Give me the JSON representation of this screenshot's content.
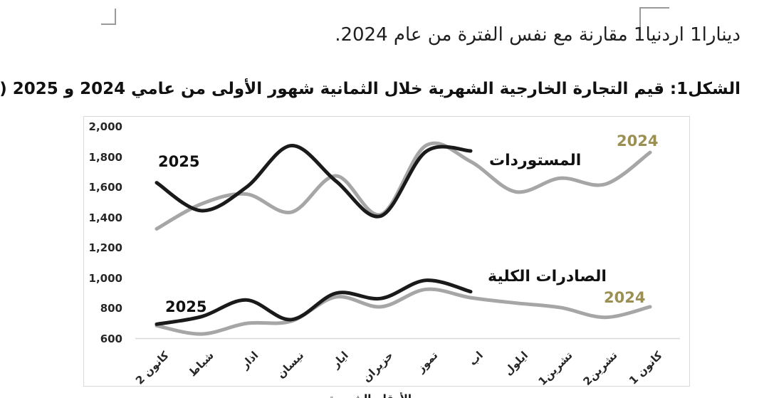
{
  "page": {
    "intro_text": "دينارا1 اردنيا1 مقارنة مع نفس الفترة من عام 2024.",
    "figure_caption": "الشكل1: قيم التجارة الخارجية الشهرية خلال الثمانية شهور الأولى من عامي 2024 و 2025 (مليون دينار أردني)",
    "bottom_partial_text": "الأرقام الشهرية"
  },
  "chart_data": {
    "type": "line",
    "title": "قيم التجارة الخارجية الشهرية خلال الثمانية شهور الأولى من عامي 2024 و 2025 (مليون دينار أردني)",
    "categories": [
      "كانون 2",
      "شباط",
      "اذار",
      "نيسان",
      "ايار",
      "حزيران",
      "تموز",
      "اب",
      "ايلول",
      "تشرين1",
      "تشرين2",
      "كانون 1"
    ],
    "series": [
      {
        "id": "imports-2024",
        "name": "المستوردات 2024",
        "color": "#a6a6a6",
        "values": [
          1325,
          1490,
          1555,
          1435,
          1675,
          1420,
          1875,
          1770,
          1570,
          1660,
          1620,
          1830
        ]
      },
      {
        "id": "exports-2024",
        "name": "الصادرات الكلية 2024",
        "color": "#a6a6a6",
        "values": [
          685,
          630,
          700,
          715,
          875,
          810,
          925,
          870,
          835,
          805,
          740,
          810
        ]
      },
      {
        "id": "imports-2025",
        "name": "المستوردات 2025",
        "color": "#1a1a1a",
        "values": [
          1630,
          1445,
          1600,
          1875,
          1640,
          1410,
          1835,
          1840
        ]
      },
      {
        "id": "exports-2025",
        "name": "الصادرات الكلية 2025",
        "color": "#1a1a1a",
        "values": [
          695,
          745,
          855,
          725,
          900,
          865,
          985,
          910
        ]
      }
    ],
    "ylim": [
      600,
      2000
    ],
    "ytick_step": 200,
    "ytick_labels": [
      "2,000",
      "1,800",
      "1,600",
      "1,400",
      "1,200",
      "1,000",
      "800",
      "600"
    ],
    "grid": "baseline-only",
    "legend": "inline-labels",
    "labels": {
      "imports_year_2025": "2025",
      "imports_year_2024": "2024",
      "exports_year_2025": "2025",
      "exports_year_2024": "2024",
      "imports_series": "المستوردات",
      "exports_series": "الصادرات الكلية"
    },
    "colors": {
      "black_series": "#1a1a1a",
      "gray_series": "#a6a6a6",
      "year_2024_label": "#9c8f52",
      "baseline": "#d9d9d9"
    }
  }
}
